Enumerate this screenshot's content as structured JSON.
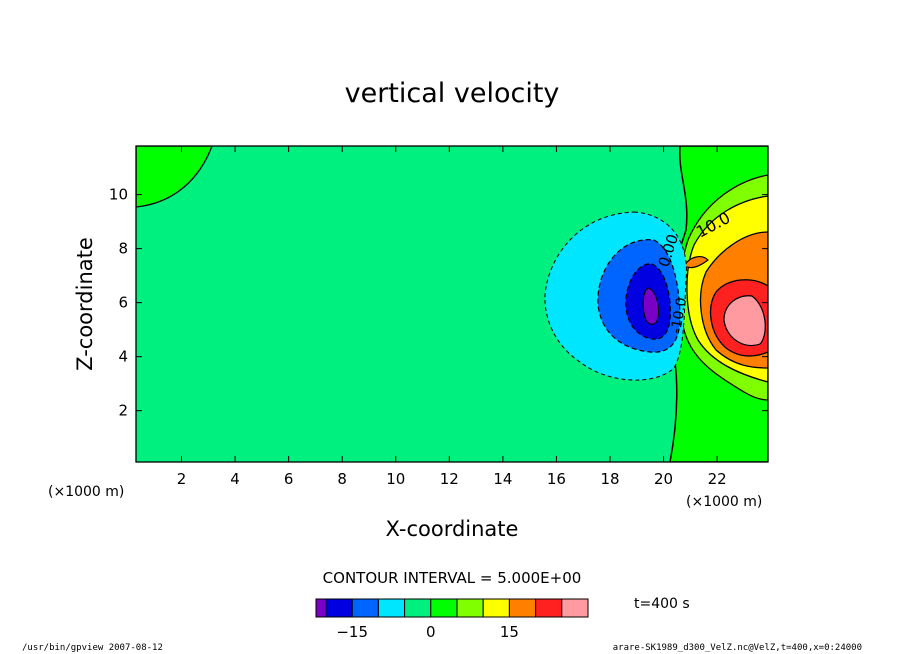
{
  "chart_data": {
    "type": "contour",
    "title": "vertical velocity",
    "xlabel": "X-coordinate",
    "ylabel": "Z-coordinate",
    "x_unit": "(×1000 m)",
    "y_unit": "(×1000 m)",
    "xlim": [
      0.3,
      23.9
    ],
    "ylim": [
      0.1,
      11.8
    ],
    "x_ticks": [
      "2",
      "4",
      "6",
      "8",
      "10",
      "12",
      "14",
      "16",
      "18",
      "20",
      "22"
    ],
    "y_ticks": [
      "2",
      "4",
      "6",
      "8",
      "10"
    ],
    "contour_interval_text": "CONTOUR INTERVAL = 5.000E+00",
    "contour_labels": [
      "10.0",
      "0.00",
      "-10.0"
    ],
    "colorbar": {
      "colors": [
        "#7a00c8",
        "#0000e0",
        "#0064ff",
        "#00e6ff",
        "#00f080",
        "#00ff00",
        "#80ff00",
        "#ffff00",
        "#ff8000",
        "#ff2020",
        "#ff9aa0"
      ],
      "tick_values": [
        -15,
        0,
        15
      ]
    },
    "time_label": "t=400 s",
    "footer_left": "/usr/bin/gpview   2007-08-12",
    "footer_right": "arare-SK1989_d300_VelZ.nc@VelZ,t=400,x=0:24000"
  }
}
